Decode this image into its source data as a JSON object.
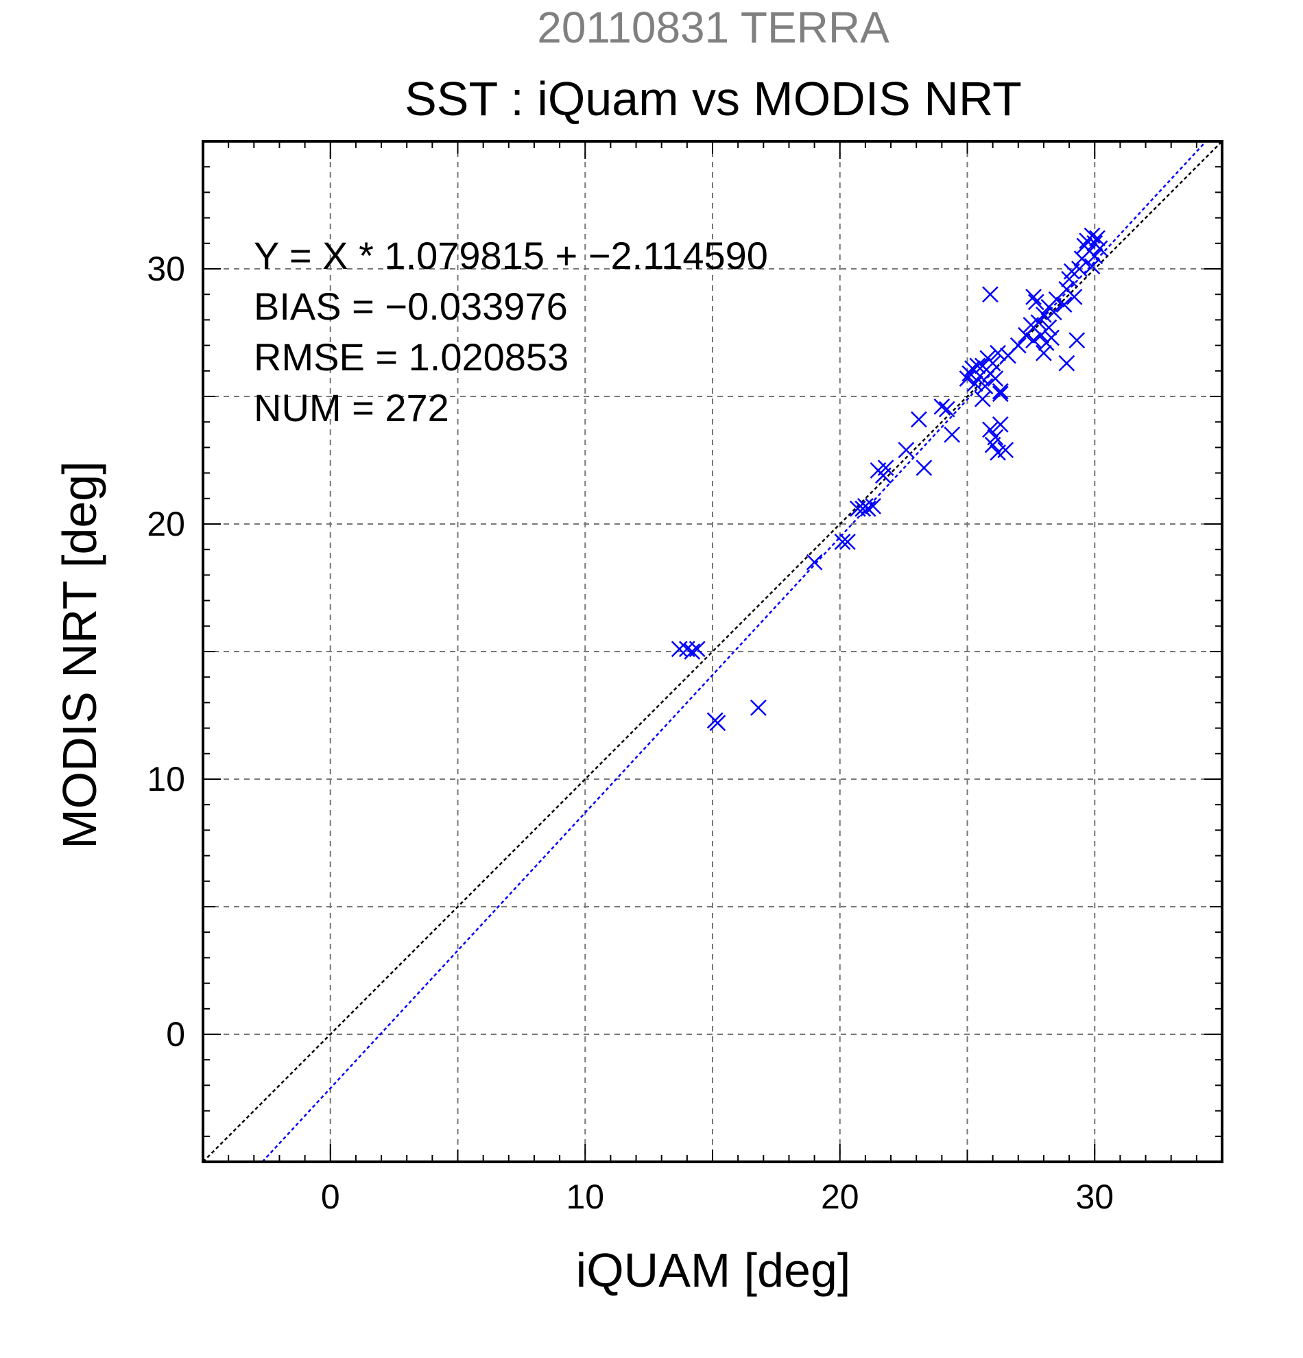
{
  "chart_data": {
    "type": "scatter",
    "title": "20110831 TERRA",
    "subtitle": "SST : iQuam vs MODIS NRT",
    "xlabel": "iQUAM [deg]",
    "ylabel": "MODIS NRT [deg]",
    "xlim": [
      -5,
      35
    ],
    "ylim": [
      -5,
      35
    ],
    "x_ticks": [
      "0",
      "10",
      "20",
      "30"
    ],
    "y_ticks": [
      "0",
      "10",
      "20",
      "30"
    ],
    "grid": true,
    "annotations": [
      "Y = X * 1.079815 + −2.114590",
      "BIAS = −0.033976",
      "RMSE = 1.020853",
      "NUM = 272"
    ],
    "reference_lines": [
      {
        "name": "1:1",
        "slope": 1.0,
        "intercept": 0.0,
        "color": "#000000"
      },
      {
        "name": "fit",
        "slope": 1.079815,
        "intercept": -2.11459,
        "color": "#0000ff"
      }
    ],
    "series": [
      {
        "marker": "x",
        "color": "#0000ff",
        "points": [
          [
            13.7,
            15.1
          ],
          [
            14.0,
            15.1
          ],
          [
            14.2,
            15.0
          ],
          [
            14.4,
            15.1
          ],
          [
            15.1,
            12.3
          ],
          [
            15.2,
            12.2
          ],
          [
            16.8,
            12.8
          ],
          [
            19.0,
            18.5
          ],
          [
            20.1,
            19.3
          ],
          [
            20.3,
            19.3
          ],
          [
            20.7,
            20.6
          ],
          [
            20.9,
            20.6
          ],
          [
            21.0,
            20.7
          ],
          [
            21.1,
            20.6
          ],
          [
            21.3,
            20.7
          ],
          [
            21.5,
            22.1
          ],
          [
            21.7,
            21.9
          ],
          [
            21.8,
            22.2
          ],
          [
            22.6,
            22.9
          ],
          [
            23.1,
            24.1
          ],
          [
            23.3,
            22.2
          ],
          [
            24.0,
            24.6
          ],
          [
            24.2,
            24.5
          ],
          [
            24.4,
            23.5
          ],
          [
            25.0,
            25.7
          ],
          [
            25.1,
            25.9
          ],
          [
            25.2,
            26.1
          ],
          [
            25.3,
            25.5
          ],
          [
            25.4,
            26.2
          ],
          [
            25.5,
            25.8
          ],
          [
            25.6,
            26.2
          ],
          [
            25.7,
            25.4
          ],
          [
            25.8,
            26.5
          ],
          [
            25.9,
            25.9
          ],
          [
            26.0,
            26.3
          ],
          [
            26.1,
            25.7
          ],
          [
            26.2,
            26.7
          ],
          [
            26.3,
            25.2
          ],
          [
            25.6,
            24.9
          ],
          [
            25.9,
            29.0
          ],
          [
            25.9,
            23.7
          ],
          [
            26.0,
            23.1
          ],
          [
            26.1,
            23.4
          ],
          [
            26.2,
            22.8
          ],
          [
            26.3,
            23.9
          ],
          [
            26.5,
            22.9
          ],
          [
            26.3,
            25.1
          ],
          [
            26.6,
            26.6
          ],
          [
            27.0,
            27.0
          ],
          [
            27.3,
            27.4
          ],
          [
            27.5,
            27.8
          ],
          [
            27.6,
            27.2
          ],
          [
            27.6,
            28.9
          ],
          [
            27.7,
            28.7
          ],
          [
            27.8,
            27.9
          ],
          [
            27.9,
            27.4
          ],
          [
            28.0,
            28.2
          ],
          [
            28.0,
            26.7
          ],
          [
            28.1,
            27.1
          ],
          [
            28.2,
            28.5
          ],
          [
            28.2,
            27.7
          ],
          [
            28.3,
            27.3
          ],
          [
            28.4,
            28.3
          ],
          [
            28.5,
            28.8
          ],
          [
            28.8,
            28.6
          ],
          [
            28.9,
            26.3
          ],
          [
            28.9,
            29.2
          ],
          [
            29.0,
            29.6
          ],
          [
            29.1,
            29.9
          ],
          [
            29.2,
            28.9
          ],
          [
            29.3,
            27.2
          ],
          [
            29.4,
            30.0
          ],
          [
            29.5,
            30.4
          ],
          [
            29.6,
            30.9
          ],
          [
            29.7,
            31.1
          ],
          [
            29.8,
            30.7
          ],
          [
            29.9,
            31.3
          ],
          [
            30.0,
            31.0
          ],
          [
            30.1,
            31.2
          ],
          [
            30.2,
            30.8
          ],
          [
            29.9,
            30.1
          ],
          [
            30.0,
            30.5
          ]
        ]
      }
    ]
  }
}
